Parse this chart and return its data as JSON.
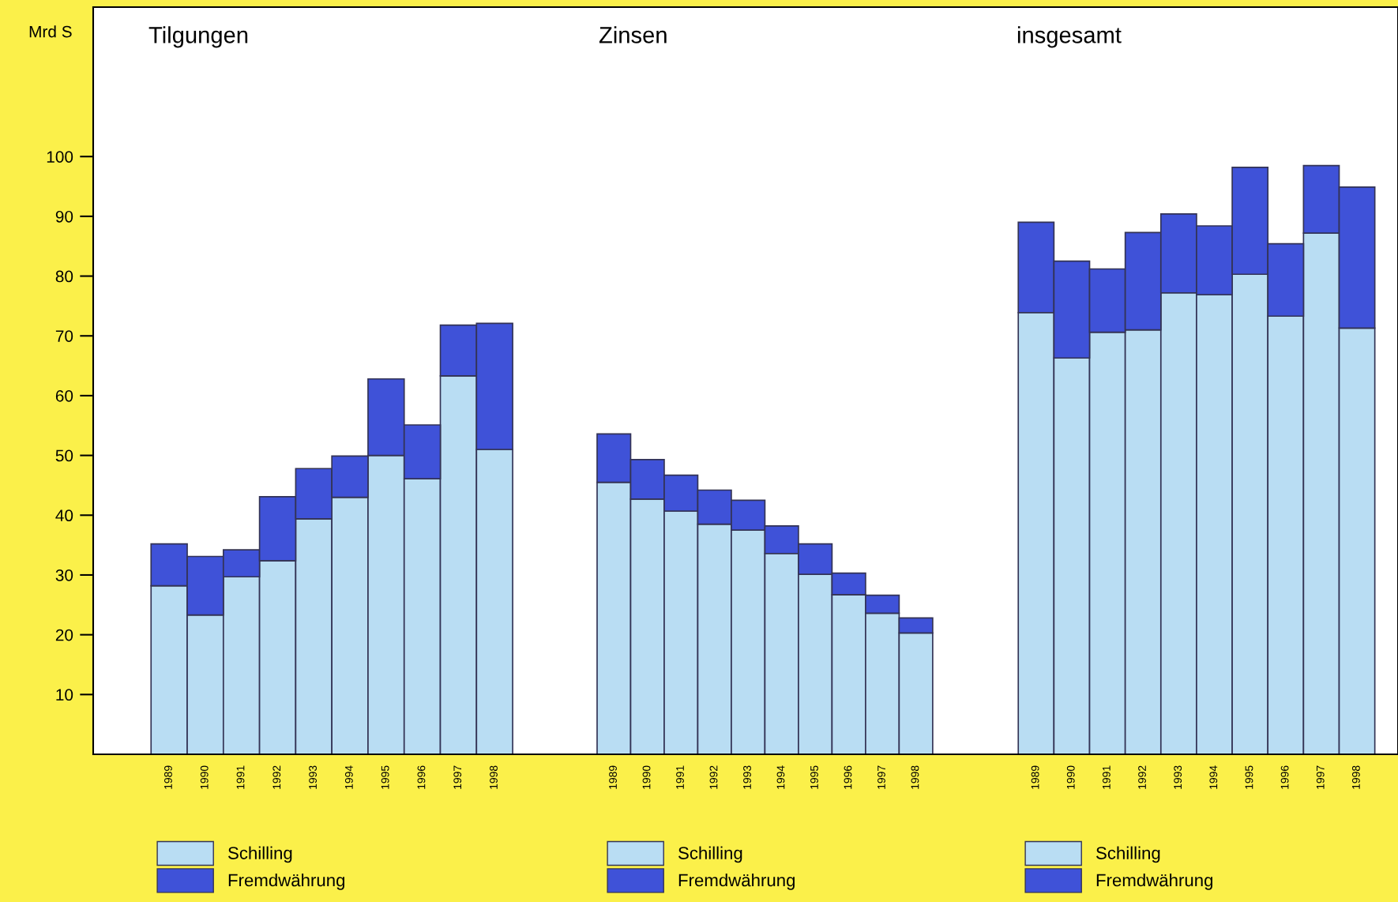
{
  "chart_data": [
    {
      "type": "bar",
      "stacked": true,
      "title": "Tilgungen",
      "ylabel": "Mrd S",
      "categories": [
        "1989",
        "1990",
        "1991",
        "1992",
        "1993",
        "1994",
        "1995",
        "1996",
        "1997",
        "1998"
      ],
      "ylim": [
        0,
        125
      ],
      "yticks": [
        10,
        20,
        30,
        40,
        50,
        60,
        70,
        80,
        90,
        100
      ],
      "legend": "bottom",
      "series": [
        {
          "name": "Schilling",
          "color": "#b9ddf3",
          "values": [
            28.2,
            23.3,
            29.7,
            32.4,
            39.4,
            43.0,
            50.0,
            46.1,
            63.3,
            51.0
          ]
        },
        {
          "name": "Fremdwährung",
          "color": "#3f52d8",
          "values": [
            7.0,
            9.8,
            4.5,
            10.7,
            8.4,
            6.9,
            12.8,
            9.0,
            8.5,
            21.1
          ]
        }
      ]
    },
    {
      "type": "bar",
      "stacked": true,
      "title": "Zinsen",
      "categories": [
        "1989",
        "1990",
        "1991",
        "1992",
        "1993",
        "1994",
        "1995",
        "1996",
        "1997",
        "1998"
      ],
      "ylim": [
        0,
        125
      ],
      "tick_labels": "x",
      "legend": "bottom",
      "series": [
        {
          "name": "Schilling",
          "color": "#b9ddf3",
          "values": [
            45.5,
            42.7,
            40.7,
            38.5,
            37.5,
            33.6,
            30.1,
            26.7,
            23.6,
            20.3
          ]
        },
        {
          "name": "Fremdwährung",
          "color": "#3f52d8",
          "values": [
            8.1,
            6.6,
            6.0,
            5.7,
            5.0,
            4.6,
            5.1,
            3.6,
            3.0,
            2.5
          ]
        }
      ]
    },
    {
      "type": "bar",
      "stacked": true,
      "title": "insgesamt",
      "categories": [
        "1989",
        "1990",
        "1991",
        "1992",
        "1993",
        "1994",
        "1995",
        "1996",
        "1997",
        "1998"
      ],
      "ylim": [
        0,
        125
      ],
      "tick_labels": "x",
      "legend": "bottom",
      "series": [
        {
          "name": "Schilling",
          "color": "#b9ddf3",
          "values": [
            73.9,
            66.3,
            70.6,
            71.0,
            77.2,
            76.9,
            80.3,
            73.3,
            87.2,
            71.3
          ]
        },
        {
          "name": "Fremdwährung",
          "color": "#3f52d8",
          "values": [
            15.1,
            16.2,
            10.6,
            16.3,
            13.2,
            11.5,
            17.9,
            12.1,
            11.3,
            23.6
          ]
        }
      ]
    }
  ]
}
